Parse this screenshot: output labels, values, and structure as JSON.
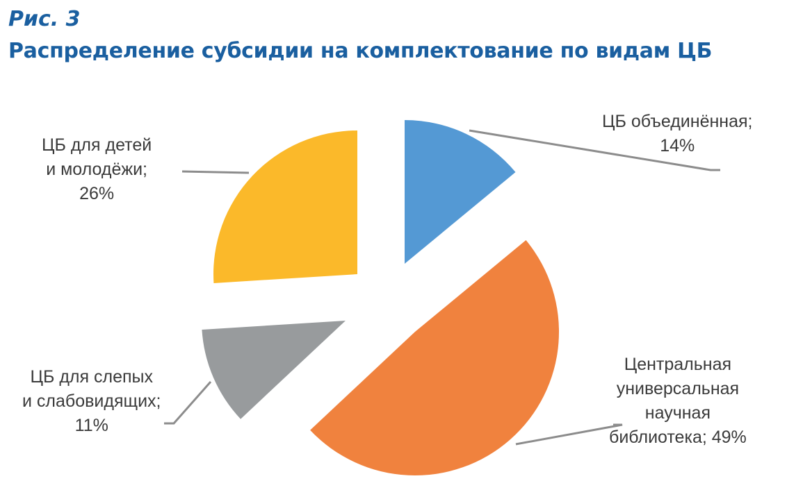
{
  "figure_label": "Рис. 3",
  "chart_data": {
    "type": "pie",
    "title": "Распределение субсидии на комплектование по видам ЦБ",
    "exploded": true,
    "slices": [
      {
        "name": "ЦБ объединённая",
        "value": 14,
        "value_label": "14%",
        "color": "#5499d4",
        "label_lines": [
          "ЦБ объединённая;",
          "14%"
        ]
      },
      {
        "name": "Центральная универсальная научная библиотека",
        "value": 49,
        "value_label": "49%",
        "color": "#f0823e",
        "label_lines": [
          "Центральная",
          "универсальная",
          "научная",
          "библиотека; 49%"
        ]
      },
      {
        "name": "ЦБ для слепых и слабовидящих",
        "value": 11,
        "value_label": "11%",
        "color": "#989b9d",
        "label_lines": [
          "ЦБ для слепых",
          "и слабовидящих;",
          "11%"
        ]
      },
      {
        "name": "ЦБ для детей и молодёжи",
        "value": 26,
        "value_label": "26%",
        "color": "#fbb92a",
        "label_lines": [
          "ЦБ для детей",
          "и молодёжи;",
          "26%"
        ]
      }
    ]
  }
}
